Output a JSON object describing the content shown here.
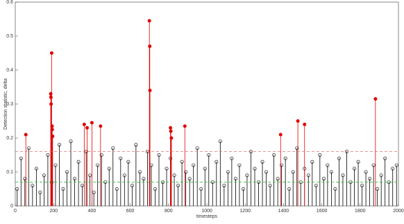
{
  "chart_data": {
    "type": "stem",
    "ylabel": "Detection statistic, delta",
    "xlabel": "timesteps",
    "xlim": [
      0,
      2000
    ],
    "xticks": [
      0,
      200,
      400,
      600,
      800,
      1000,
      1200,
      1400,
      1600,
      1800,
      2000
    ],
    "ylim": [
      0,
      0.6
    ],
    "yticks": [
      0,
      0.1,
      0.2,
      0.3,
      0.4,
      0.5,
      0.6
    ],
    "hlines": [
      {
        "value": 0.16,
        "color": "#e87070"
      },
      {
        "value": 0.07,
        "color": "#33bb33"
      }
    ],
    "series": [
      {
        "color": "#000000",
        "marker": "open",
        "x": [
          10,
          30,
          50,
          70,
          90,
          110,
          130,
          150,
          170,
          190,
          210,
          230,
          250,
          270,
          290,
          310,
          330,
          350,
          370,
          390,
          410,
          430,
          450,
          470,
          490,
          510,
          530,
          550,
          570,
          590,
          610,
          630,
          650,
          670,
          690,
          710,
          730,
          750,
          770,
          790,
          810,
          830,
          850,
          870,
          890,
          910,
          930,
          950,
          970,
          990,
          1010,
          1030,
          1050,
          1070,
          1090,
          1110,
          1130,
          1150,
          1170,
          1190,
          1210,
          1230,
          1250,
          1270,
          1290,
          1310,
          1330,
          1350,
          1370,
          1390,
          1410,
          1430,
          1450,
          1470,
          1490,
          1510,
          1530,
          1550,
          1570,
          1590,
          1610,
          1630,
          1650,
          1670,
          1690,
          1710,
          1730,
          1750,
          1770,
          1790,
          1810,
          1830,
          1850,
          1870,
          1890,
          1910,
          1930,
          1950,
          1970,
          1990
        ],
        "values": [
          0.05,
          0.14,
          0.08,
          0.17,
          0.06,
          0.11,
          0.04,
          0.09,
          0.15,
          0.07,
          0.12,
          0.18,
          0.05,
          0.1,
          0.19,
          0.08,
          0.13,
          0.06,
          0.16,
          0.09,
          0.04,
          0.12,
          0.15,
          0.07,
          0.11,
          0.17,
          0.05,
          0.14,
          0.09,
          0.13,
          0.06,
          0.18,
          0.1,
          0.08,
          0.16,
          0.12,
          0.05,
          0.15,
          0.07,
          0.11,
          0.14,
          0.09,
          0.06,
          0.13,
          0.1,
          0.08,
          0.12,
          0.17,
          0.05,
          0.11,
          0.15,
          0.07,
          0.13,
          0.19,
          0.06,
          0.1,
          0.14,
          0.08,
          0.12,
          0.05,
          0.09,
          0.16,
          0.11,
          0.07,
          0.13,
          0.1,
          0.06,
          0.15,
          0.08,
          0.12,
          0.14,
          0.05,
          0.1,
          0.17,
          0.07,
          0.11,
          0.09,
          0.13,
          0.06,
          0.15,
          0.08,
          0.12,
          0.1,
          0.05,
          0.14,
          0.09,
          0.16,
          0.07,
          0.11,
          0.13,
          0.06,
          0.1,
          0.08,
          0.12,
          0.05,
          0.09,
          0.14,
          0.07,
          0.11,
          0.12
        ]
      },
      {
        "color": "#e00000",
        "marker": "filled",
        "x": [
          55,
          185,
          186,
          187,
          190,
          192,
          193,
          195,
          360,
          375,
          400,
          445,
          700,
          702,
          703,
          810,
          812,
          815,
          885,
          1385,
          1475,
          1510,
          1880
        ],
        "values": [
          0.21,
          0.33,
          0.32,
          0.3,
          0.45,
          0.235,
          0.225,
          0.205,
          0.24,
          0.23,
          0.245,
          0.235,
          0.545,
          0.47,
          0.34,
          0.23,
          0.22,
          0.2,
          0.235,
          0.21,
          0.25,
          0.24,
          0.315
        ]
      }
    ]
  }
}
